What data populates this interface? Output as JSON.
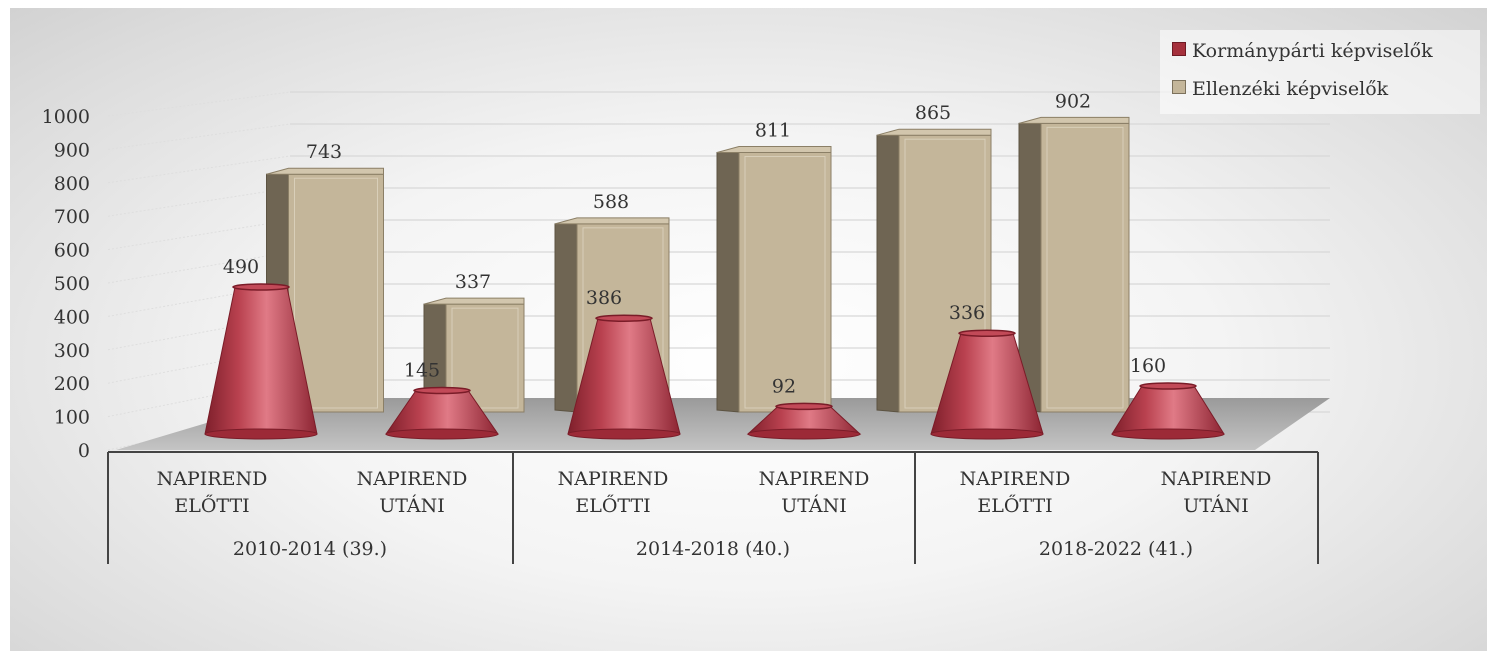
{
  "chart_data": {
    "type": "bar",
    "yticks": [
      "0",
      "100",
      "200",
      "300",
      "400",
      "500",
      "600",
      "700",
      "800",
      "900",
      "1000"
    ],
    "ylim": [
      0,
      1000
    ],
    "groups": [
      "2010-2014 (39.)",
      "2014-2018 (40.)",
      "2018-2022 (41.)"
    ],
    "categories": [
      [
        "NAPIREND",
        "ELŐTTI"
      ],
      [
        "NAPIREND",
        "UTÁNI"
      ],
      [
        "NAPIREND",
        "ELŐTTI"
      ],
      [
        "NAPIREND",
        "UTÁNI"
      ],
      [
        "NAPIREND",
        "ELŐTTI"
      ],
      [
        "NAPIREND",
        "UTÁNI"
      ]
    ],
    "series": [
      {
        "name": "Kormánypárti képviselők",
        "values": [
          490,
          145,
          386,
          92,
          336,
          160
        ],
        "color": "#a5303c",
        "shape": "cone"
      },
      {
        "name": "Ellenzéki képviselők",
        "values": [
          743,
          337,
          588,
          811,
          865,
          902
        ],
        "color": "#c4b69a",
        "shape": "box"
      }
    ],
    "legend_position": "top-right",
    "grid": true
  }
}
